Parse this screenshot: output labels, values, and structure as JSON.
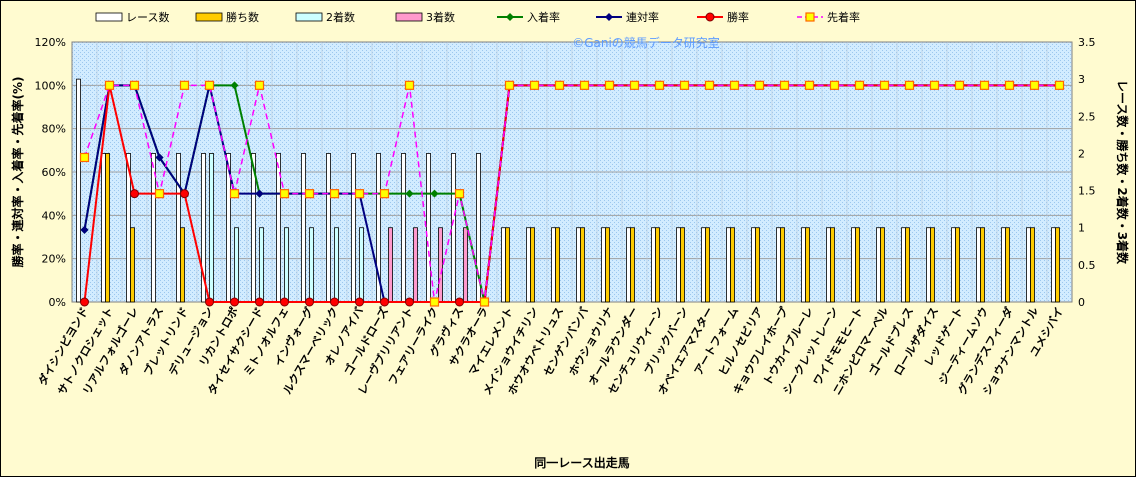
{
  "chart_data": {
    "type": "bar",
    "watermark": "©Ganiの競馬データ研究室",
    "xlabel": "同一レース出走馬",
    "ylabel_left": "勝率・連対率・入着率・先着率(%)",
    "ylabel_right": "レース数・勝ち数・2着数・3着数",
    "y_left": {
      "min": 0,
      "max": 120,
      "step": 20,
      "ticks": [
        "0%",
        "20%",
        "40%",
        "60%",
        "80%",
        "100%",
        "120%"
      ]
    },
    "y_right": {
      "min": 0,
      "max": 3.5,
      "step": 0.5,
      "ticks": [
        "0",
        "0.5",
        "1",
        "1.5",
        "2",
        "2.5",
        "3",
        "3.5"
      ]
    },
    "grid": true,
    "legend_position": "top",
    "categories": [
      "ダイシンビヨンド",
      "サトノクロシェット",
      "リアルフォルゴーレ",
      "ダノンアトラス",
      "ブレットリンド",
      "デリュージョン",
      "リカントロポ",
      "タイセイサクシード",
      "ミトノオルフェ",
      "インヴォーグ",
      "ルクスマーベリック",
      "オレノアイバ",
      "ゴールドローズ",
      "レーヴブリリアント",
      "フェアリーライク",
      "グラヴィス",
      "サクラオーラ",
      "マイエレメント",
      "メイショウイチリン",
      "ホウオウベトリュス",
      "センゲンバンバ",
      "ホウショウリナ",
      "オールラウンダー",
      "センチュリウィーン",
      "ブリックバーン",
      "オベイエアマスター",
      "アートフォーム",
      "ヒルノセビリア",
      "キョウワレイホープ",
      "トウカイブルーレ",
      "シークレットレーン",
      "ワイドモモヒート",
      "ニホンピロマーベル",
      "ゴールドブレス",
      "ロールザダイス",
      "レッドゲート",
      "ジーティームソウ",
      "グランデスフィーダ",
      "ショウナンマントル",
      "ユメシバイ"
    ],
    "series": [
      {
        "name": "レース数",
        "kind": "bar",
        "axis": "right",
        "color": "#ffffff",
        "values": [
          3,
          2,
          2,
          2,
          2,
          2,
          2,
          2,
          2,
          2,
          2,
          2,
          2,
          2,
          2,
          2,
          2,
          1,
          1,
          1,
          1,
          1,
          1,
          1,
          1,
          1,
          1,
          1,
          1,
          1,
          1,
          1,
          1,
          1,
          1,
          1,
          1,
          1,
          1,
          1
        ]
      },
      {
        "name": "勝ち数",
        "kind": "bar",
        "axis": "right",
        "color": "#ffcc00",
        "values": [
          0,
          2,
          1,
          0,
          1,
          0,
          0,
          0,
          0,
          0,
          0,
          0,
          0,
          0,
          0,
          0,
          0,
          1,
          1,
          1,
          1,
          1,
          1,
          1,
          1,
          1,
          1,
          1,
          1,
          1,
          1,
          1,
          1,
          1,
          1,
          1,
          1,
          1,
          1,
          1
        ]
      },
      {
        "name": "2着数",
        "kind": "bar",
        "axis": "right",
        "color": "#ccffff",
        "values": [
          0,
          0,
          0,
          0,
          0,
          2,
          1,
          1,
          1,
          1,
          1,
          1,
          0,
          0,
          0,
          0,
          0,
          0,
          0,
          0,
          0,
          0,
          0,
          0,
          0,
          0,
          0,
          0,
          0,
          0,
          0,
          0,
          0,
          0,
          0,
          0,
          0,
          0,
          0,
          0
        ]
      },
      {
        "name": "3着数",
        "kind": "bar",
        "axis": "right",
        "color": "#ff99cc",
        "values": [
          0,
          0,
          0,
          0,
          0,
          0,
          0,
          0,
          0,
          0,
          0,
          0,
          1,
          1,
          1,
          1,
          0,
          0,
          0,
          0,
          0,
          0,
          0,
          0,
          0,
          0,
          0,
          0,
          0,
          0,
          0,
          0,
          0,
          0,
          0,
          0,
          0,
          0,
          0,
          0
        ]
      },
      {
        "name": "入着率",
        "kind": "line",
        "axis": "left",
        "color": "#008000",
        "marker": "diamond",
        "dashed": false,
        "values": [
          33.3,
          100,
          100,
          66.7,
          50,
          100,
          100,
          50,
          50,
          50,
          50,
          50,
          50,
          50,
          50,
          50,
          0,
          100,
          100,
          100,
          100,
          100,
          100,
          100,
          100,
          100,
          100,
          100,
          100,
          100,
          100,
          100,
          100,
          100,
          100,
          100,
          100,
          100,
          100,
          100
        ]
      },
      {
        "name": "連対率",
        "kind": "line",
        "axis": "left",
        "color": "#000080",
        "marker": "diamond",
        "dashed": false,
        "values": [
          33.3,
          100,
          100,
          66.7,
          50,
          100,
          50,
          50,
          50,
          50,
          50,
          50,
          0,
          0,
          0,
          0,
          0,
          100,
          100,
          100,
          100,
          100,
          100,
          100,
          100,
          100,
          100,
          100,
          100,
          100,
          100,
          100,
          100,
          100,
          100,
          100,
          100,
          100,
          100,
          100
        ]
      },
      {
        "name": "勝率",
        "kind": "line",
        "axis": "left",
        "color": "#ff0000",
        "marker": "circle",
        "dashed": false,
        "values": [
          0,
          100,
          50,
          50,
          50,
          0,
          0,
          0,
          0,
          0,
          0,
          0,
          0,
          0,
          0,
          0,
          0,
          100,
          100,
          100,
          100,
          100,
          100,
          100,
          100,
          100,
          100,
          100,
          100,
          100,
          100,
          100,
          100,
          100,
          100,
          100,
          100,
          100,
          100,
          100
        ]
      },
      {
        "name": "先着率",
        "kind": "line",
        "axis": "left",
        "color": "#ff00ff",
        "marker": "square",
        "dashed": true,
        "values": [
          66.7,
          100,
          100,
          50,
          100,
          100,
          50,
          100,
          50,
          50,
          50,
          50,
          50,
          100,
          0,
          50,
          0,
          100,
          100,
          100,
          100,
          100,
          100,
          100,
          100,
          100,
          100,
          100,
          100,
          100,
          100,
          100,
          100,
          100,
          100,
          100,
          100,
          100,
          100,
          100
        ]
      }
    ]
  }
}
